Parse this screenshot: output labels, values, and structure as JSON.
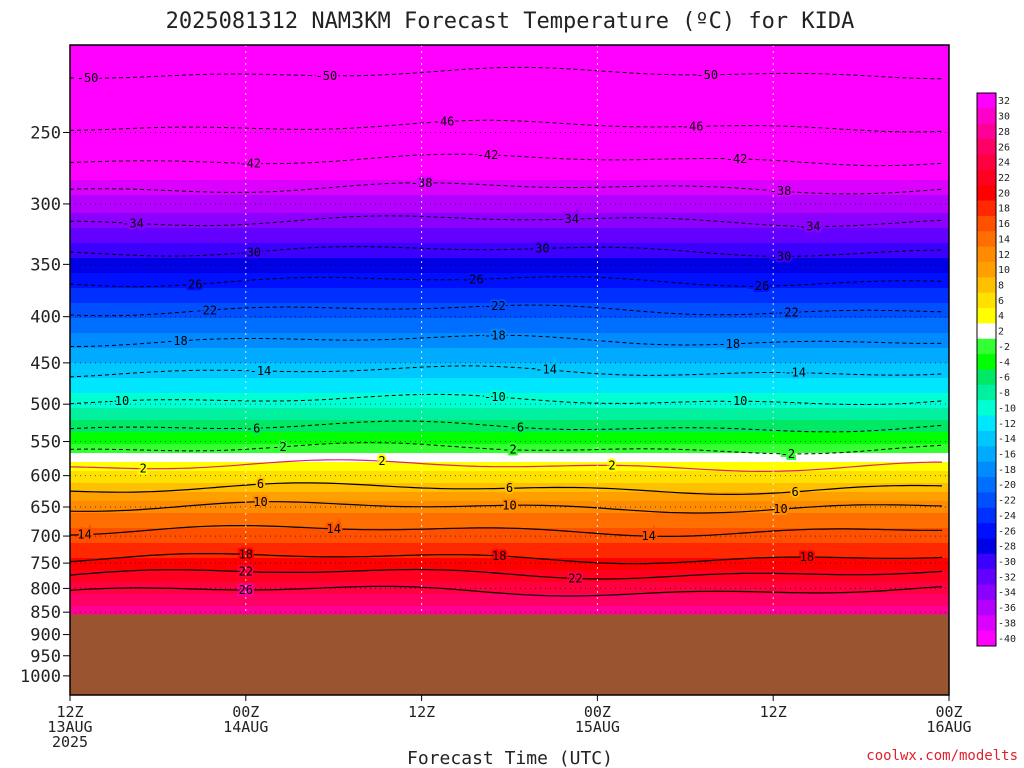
{
  "chart_data": {
    "type": "heatmap",
    "title": "2025081312 NAM3KM Forecast Temperature (ºC) for KIDA",
    "xlabel": "Forecast Time (UTC)",
    "ylabel": "",
    "credit": "coolwx.com/modelts",
    "y_scale": "log-pressure",
    "ylim": [
      1050,
      200
    ],
    "xlim_hours": [
      0,
      60
    ],
    "y_ticks": [
      {
        "p": 250,
        "label": "250"
      },
      {
        "p": 300,
        "label": "300"
      },
      {
        "p": 350,
        "label": "350"
      },
      {
        "p": 400,
        "label": "400"
      },
      {
        "p": 450,
        "label": "450"
      },
      {
        "p": 500,
        "label": "500"
      },
      {
        "p": 550,
        "label": "550"
      },
      {
        "p": 600,
        "label": "600"
      },
      {
        "p": 650,
        "label": "650"
      },
      {
        "p": 700,
        "label": "700"
      },
      {
        "p": 750,
        "label": "750"
      },
      {
        "p": 800,
        "label": "800"
      },
      {
        "p": 850,
        "label": "850"
      },
      {
        "p": 900,
        "label": "900"
      },
      {
        "p": 950,
        "label": "950"
      },
      {
        "p": 1000,
        "label": "1000"
      }
    ],
    "x_ticks": [
      {
        "h": 0,
        "lines": [
          "12Z",
          "13AUG",
          "2025"
        ]
      },
      {
        "h": 12,
        "lines": [
          "00Z",
          "14AUG"
        ]
      },
      {
        "h": 24,
        "lines": [
          "12Z"
        ]
      },
      {
        "h": 36,
        "lines": [
          "00Z",
          "15AUG"
        ]
      },
      {
        "h": 48,
        "lines": [
          "12Z"
        ]
      },
      {
        "h": 60,
        "lines": [
          "00Z",
          "16AUG"
        ]
      }
    ],
    "ground_pressure": 855,
    "ground_color": "#9a5430",
    "colorbar": {
      "labels": [
        "32",
        "30",
        "28",
        "26",
        "24",
        "22",
        "20",
        "18",
        "16",
        "14",
        "12",
        "10",
        "8",
        "6",
        "4",
        "2",
        "-2",
        "-4",
        "-6",
        "-8",
        "-10",
        "-12",
        "-14",
        "-16",
        "-18",
        "-20",
        "-22",
        "-24",
        "-26",
        "-28",
        "-30",
        "-32",
        "-34",
        "-36",
        "-38",
        "-40"
      ],
      "colors": [
        "#ff00ff",
        "#ff00c8",
        "#ff0096",
        "#ff0064",
        "#ff0040",
        "#ff0020",
        "#ff0000",
        "#ff2800",
        "#ff5000",
        "#ff6e00",
        "#ff8c00",
        "#ffa000",
        "#ffc000",
        "#ffe000",
        "#ffff00",
        "#ffffff",
        "#33ff33",
        "#00ff00",
        "#00e864",
        "#00f0a0",
        "#00ffd2",
        "#00e6ff",
        "#00c8ff",
        "#00aaff",
        "#008cff",
        "#006eff",
        "#0050ff",
        "#0030ff",
        "#0010ff",
        "#0000e6",
        "#3c00ff",
        "#6400ff",
        "#8c00ff",
        "#b400ff",
        "#dc00ff",
        "#ff00ff"
      ]
    },
    "profile": [
      {
        "p": 850,
        "t": 26
      },
      {
        "p": 800,
        "t": 22
      },
      {
        "p": 750,
        "t": 18
      },
      {
        "p": 700,
        "t": 14
      },
      {
        "p": 650,
        "t": 10
      },
      {
        "p": 620,
        "t": 6
      },
      {
        "p": 585,
        "t": 2
      },
      {
        "p": 560,
        "t": -2
      },
      {
        "p": 530,
        "t": -6
      },
      {
        "p": 495,
        "t": -10
      },
      {
        "p": 460,
        "t": -14
      },
      {
        "p": 425,
        "t": -18
      },
      {
        "p": 393,
        "t": -22
      },
      {
        "p": 365,
        "t": -26
      },
      {
        "p": 338,
        "t": -30
      },
      {
        "p": 313,
        "t": -34
      },
      {
        "p": 288,
        "t": -38
      },
      {
        "p": 268,
        "t": -42
      },
      {
        "p": 246,
        "t": -46
      },
      {
        "p": 215,
        "t": -50
      }
    ],
    "contours": [
      {
        "value": -50,
        "p": 215,
        "dash": true,
        "labels": [
          {
            "h": 1.2,
            "text": "-50"
          },
          {
            "h": 17.5,
            "text": "-50"
          },
          {
            "h": 43.5,
            "text": "-50"
          }
        ]
      },
      {
        "value": -46,
        "p": 246,
        "dash": true,
        "labels": [
          {
            "h": 25.5,
            "text": "-46"
          },
          {
            "h": 42.5,
            "text": "-46"
          }
        ]
      },
      {
        "value": -42,
        "p": 268,
        "dash": true,
        "labels": [
          {
            "h": 12.3,
            "text": "-42"
          },
          {
            "h": 28.5,
            "text": "-42"
          },
          {
            "h": 45.5,
            "text": "-42"
          }
        ]
      },
      {
        "value": -38,
        "p": 288,
        "dash": true,
        "labels": [
          {
            "h": 24,
            "text": "-38"
          },
          {
            "h": 48.5,
            "text": "-38"
          }
        ]
      },
      {
        "value": -34,
        "p": 313,
        "dash": true,
        "labels": [
          {
            "h": 4.3,
            "text": "-34"
          },
          {
            "h": 34,
            "text": "-34"
          },
          {
            "h": 50.5,
            "text": "-34"
          }
        ]
      },
      {
        "value": -30,
        "p": 338,
        "dash": true,
        "labels": [
          {
            "h": 12.3,
            "text": "-30"
          },
          {
            "h": 32,
            "text": "-30"
          },
          {
            "h": 48.5,
            "text": "-30"
          }
        ]
      },
      {
        "value": -26,
        "p": 365,
        "dash": true,
        "labels": [
          {
            "h": 8.3,
            "text": "-26"
          },
          {
            "h": 27.5,
            "text": "-26"
          },
          {
            "h": 47,
            "text": "-26"
          }
        ]
      },
      {
        "value": -22,
        "p": 393,
        "dash": true,
        "labels": [
          {
            "h": 9.3,
            "text": "-22"
          },
          {
            "h": 29,
            "text": "-22"
          },
          {
            "h": 49,
            "text": "-22"
          }
        ]
      },
      {
        "value": -18,
        "p": 425,
        "dash": true,
        "labels": [
          {
            "h": 7.3,
            "text": "-18"
          },
          {
            "h": 29,
            "text": "-18"
          },
          {
            "h": 45,
            "text": "-18"
          }
        ]
      },
      {
        "value": -14,
        "p": 460,
        "dash": true,
        "labels": [
          {
            "h": 13,
            "text": "-14"
          },
          {
            "h": 32.5,
            "text": "-14"
          },
          {
            "h": 49.5,
            "text": "-14"
          }
        ]
      },
      {
        "value": -10,
        "p": 495,
        "dash": true,
        "labels": [
          {
            "h": 3.3,
            "text": "-10"
          },
          {
            "h": 29,
            "text": "-10"
          },
          {
            "h": 45.5,
            "text": "-10"
          }
        ]
      },
      {
        "value": -6,
        "p": 530,
        "dash": true,
        "labels": [
          {
            "h": 12.5,
            "text": "-6"
          },
          {
            "h": 30.5,
            "text": "-6"
          }
        ]
      },
      {
        "value": -2,
        "p": 560,
        "dash": true,
        "labels": [
          {
            "h": 14.3,
            "text": "-2"
          },
          {
            "h": 30,
            "text": "-2"
          },
          {
            "h": 49,
            "text": "-2"
          }
        ]
      },
      {
        "value": 2,
        "p": 585,
        "dash": false,
        "color": "#e0207a",
        "labels": [
          {
            "h": 5,
            "text": "2"
          },
          {
            "h": 21.3,
            "text": "2"
          },
          {
            "h": 37,
            "text": "2"
          }
        ]
      },
      {
        "value": 6,
        "p": 620,
        "dash": false,
        "labels": [
          {
            "h": 13,
            "text": "6"
          },
          {
            "h": 30,
            "text": "6"
          },
          {
            "h": 49.5,
            "text": "6"
          }
        ]
      },
      {
        "value": 10,
        "p": 650,
        "dash": false,
        "labels": [
          {
            "h": 13,
            "text": "10"
          },
          {
            "h": 30,
            "text": "10"
          },
          {
            "h": 48.5,
            "text": "10"
          }
        ]
      },
      {
        "value": 14,
        "p": 690,
        "dash": false,
        "labels": [
          {
            "h": 1,
            "text": "14"
          },
          {
            "h": 18,
            "text": "14"
          },
          {
            "h": 39.5,
            "text": "14"
          }
        ]
      },
      {
        "value": 18,
        "p": 740,
        "dash": false,
        "labels": [
          {
            "h": 12,
            "text": "18"
          },
          {
            "h": 29.3,
            "text": "18"
          },
          {
            "h": 50.3,
            "text": "18"
          }
        ]
      },
      {
        "value": 22,
        "p": 770,
        "dash": false,
        "labels": [
          {
            "h": 12,
            "text": "22"
          },
          {
            "h": 34.5,
            "text": "22"
          }
        ]
      },
      {
        "value": 26,
        "p": 805,
        "dash": false,
        "labels": [
          {
            "h": 12,
            "text": "26"
          }
        ]
      }
    ]
  }
}
